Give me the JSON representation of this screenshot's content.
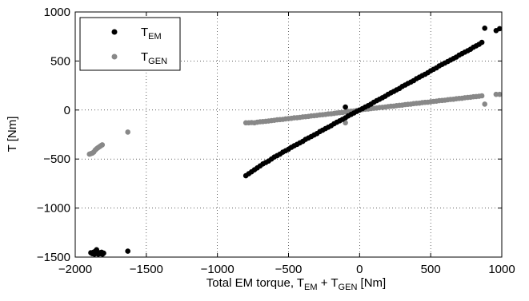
{
  "chart_data": {
    "type": "scatter",
    "xlabel": {
      "base": "Total EM torque, T",
      "sub1": "EM",
      "plus": " + T",
      "sub2": "GEN",
      "unit": " [Nm]"
    },
    "ylabel": "T [Nm]",
    "xlim": [
      -2000,
      1000
    ],
    "ylim": [
      -1500,
      1000
    ],
    "xticks": [
      -2000,
      -1500,
      -1000,
      -500,
      0,
      500,
      1000
    ],
    "yticks": [
      -1500,
      -1000,
      -500,
      0,
      500,
      1000
    ],
    "xtick_labels": [
      "−2000",
      "−1500",
      "−1000",
      "−500",
      "0",
      "500",
      "1000"
    ],
    "ytick_labels": [
      "−1500",
      "−1000",
      "−500",
      "0",
      "500",
      "1000"
    ],
    "grid": true,
    "legend_position": "top-left",
    "series": [
      {
        "name": {
          "base": "T",
          "sub": "EM"
        },
        "color": "#000000",
        "points": [
          [
            -1890,
            -1455
          ],
          [
            -1880,
            -1465
          ],
          [
            -1872,
            -1450
          ],
          [
            -1865,
            -1470
          ],
          [
            -1858,
            -1440
          ],
          [
            -1850,
            -1425
          ],
          [
            -1845,
            -1460
          ],
          [
            -1838,
            -1470
          ],
          [
            -1830,
            -1455
          ],
          [
            -1822,
            -1465
          ],
          [
            -1815,
            -1450
          ],
          [
            -1808,
            -1470
          ],
          [
            -1800,
            -1460
          ],
          [
            -1630,
            -1440
          ],
          [
            -800,
            -670
          ],
          [
            -780,
            -650
          ],
          [
            -760,
            -630
          ],
          [
            -740,
            -610
          ],
          [
            -720,
            -590
          ],
          [
            -700,
            -570
          ],
          [
            -680,
            -550
          ],
          [
            -660,
            -535
          ],
          [
            -640,
            -520
          ],
          [
            -620,
            -500
          ],
          [
            -600,
            -480
          ],
          [
            -580,
            -465
          ],
          [
            -560,
            -450
          ],
          [
            -540,
            -430
          ],
          [
            -520,
            -415
          ],
          [
            -500,
            -400
          ],
          [
            -480,
            -380
          ],
          [
            -460,
            -365
          ],
          [
            -440,
            -350
          ],
          [
            -420,
            -335
          ],
          [
            -400,
            -320
          ],
          [
            -380,
            -300
          ],
          [
            -360,
            -285
          ],
          [
            -340,
            -270
          ],
          [
            -320,
            -255
          ],
          [
            -300,
            -240
          ],
          [
            -280,
            -220
          ],
          [
            -260,
            -205
          ],
          [
            -240,
            -190
          ],
          [
            -220,
            -175
          ],
          [
            -200,
            -160
          ],
          [
            -180,
            -140
          ],
          [
            -160,
            -125
          ],
          [
            -140,
            -110
          ],
          [
            -120,
            -95
          ],
          [
            -100,
            30
          ],
          [
            -100,
            -80
          ],
          [
            -80,
            -60
          ],
          [
            -60,
            -45
          ],
          [
            -40,
            -30
          ],
          [
            -20,
            -15
          ],
          [
            0,
            0
          ],
          [
            20,
            15
          ],
          [
            40,
            30
          ],
          [
            60,
            45
          ],
          [
            80,
            60
          ],
          [
            100,
            80
          ],
          [
            120,
            95
          ],
          [
            140,
            110
          ],
          [
            160,
            125
          ],
          [
            180,
            140
          ],
          [
            200,
            160
          ],
          [
            220,
            175
          ],
          [
            240,
            190
          ],
          [
            260,
            205
          ],
          [
            280,
            220
          ],
          [
            300,
            240
          ],
          [
            320,
            255
          ],
          [
            340,
            270
          ],
          [
            360,
            285
          ],
          [
            380,
            300
          ],
          [
            400,
            320
          ],
          [
            420,
            335
          ],
          [
            440,
            350
          ],
          [
            460,
            365
          ],
          [
            480,
            380
          ],
          [
            500,
            400
          ],
          [
            520,
            415
          ],
          [
            540,
            430
          ],
          [
            560,
            450
          ],
          [
            580,
            465
          ],
          [
            600,
            480
          ],
          [
            620,
            495
          ],
          [
            640,
            510
          ],
          [
            660,
            525
          ],
          [
            680,
            540
          ],
          [
            700,
            560
          ],
          [
            720,
            575
          ],
          [
            740,
            590
          ],
          [
            760,
            605
          ],
          [
            780,
            620
          ],
          [
            800,
            640
          ],
          [
            820,
            655
          ],
          [
            840,
            670
          ],
          [
            860,
            690
          ],
          [
            880,
            835
          ],
          [
            960,
            810
          ],
          [
            985,
            830
          ]
        ]
      },
      {
        "name": {
          "base": "T",
          "sub": "GEN"
        },
        "color": "#888888",
        "points": [
          [
            -1900,
            -450
          ],
          [
            -1890,
            -445
          ],
          [
            -1880,
            -440
          ],
          [
            -1870,
            -430
          ],
          [
            -1860,
            -410
          ],
          [
            -1850,
            -395
          ],
          [
            -1840,
            -385
          ],
          [
            -1830,
            -375
          ],
          [
            -1820,
            -365
          ],
          [
            -1810,
            -355
          ],
          [
            -1630,
            -225
          ],
          [
            -800,
            -130
          ],
          [
            -780,
            -130
          ],
          [
            -760,
            -128
          ],
          [
            -740,
            -130
          ],
          [
            -720,
            -125
          ],
          [
            -700,
            -120
          ],
          [
            -680,
            -118
          ],
          [
            -660,
            -115
          ],
          [
            -640,
            -112
          ],
          [
            -620,
            -108
          ],
          [
            -600,
            -105
          ],
          [
            -580,
            -100
          ],
          [
            -560,
            -98
          ],
          [
            -540,
            -95
          ],
          [
            -520,
            -90
          ],
          [
            -500,
            -88
          ],
          [
            -480,
            -85
          ],
          [
            -460,
            -80
          ],
          [
            -440,
            -78
          ],
          [
            -420,
            -75
          ],
          [
            -400,
            -70
          ],
          [
            -380,
            -68
          ],
          [
            -360,
            -65
          ],
          [
            -340,
            -60
          ],
          [
            -320,
            -58
          ],
          [
            -300,
            -55
          ],
          [
            -280,
            -50
          ],
          [
            -260,
            -48
          ],
          [
            -240,
            -45
          ],
          [
            -220,
            -40
          ],
          [
            -200,
            -38
          ],
          [
            -180,
            -35
          ],
          [
            -160,
            -30
          ],
          [
            -140,
            -28
          ],
          [
            -120,
            -25
          ],
          [
            -100,
            -20
          ],
          [
            -100,
            -130
          ],
          [
            -80,
            -15
          ],
          [
            -60,
            -12
          ],
          [
            -40,
            -10
          ],
          [
            -20,
            -5
          ],
          [
            0,
            0
          ],
          [
            20,
            5
          ],
          [
            40,
            8
          ],
          [
            60,
            10
          ],
          [
            80,
            15
          ],
          [
            100,
            18
          ],
          [
            120,
            20
          ],
          [
            140,
            25
          ],
          [
            160,
            28
          ],
          [
            180,
            30
          ],
          [
            200,
            35
          ],
          [
            220,
            38
          ],
          [
            240,
            40
          ],
          [
            260,
            45
          ],
          [
            280,
            48
          ],
          [
            300,
            50
          ],
          [
            320,
            55
          ],
          [
            340,
            58
          ],
          [
            360,
            60
          ],
          [
            380,
            65
          ],
          [
            400,
            68
          ],
          [
            420,
            70
          ],
          [
            440,
            75
          ],
          [
            460,
            78
          ],
          [
            480,
            80
          ],
          [
            500,
            85
          ],
          [
            520,
            88
          ],
          [
            540,
            90
          ],
          [
            560,
            95
          ],
          [
            580,
            98
          ],
          [
            600,
            100
          ],
          [
            620,
            105
          ],
          [
            640,
            108
          ],
          [
            660,
            110
          ],
          [
            680,
            115
          ],
          [
            700,
            118
          ],
          [
            720,
            120
          ],
          [
            740,
            125
          ],
          [
            760,
            128
          ],
          [
            780,
            130
          ],
          [
            800,
            135
          ],
          [
            820,
            138
          ],
          [
            840,
            140
          ],
          [
            860,
            145
          ],
          [
            880,
            60
          ],
          [
            960,
            160
          ],
          [
            985,
            160
          ]
        ]
      }
    ]
  }
}
